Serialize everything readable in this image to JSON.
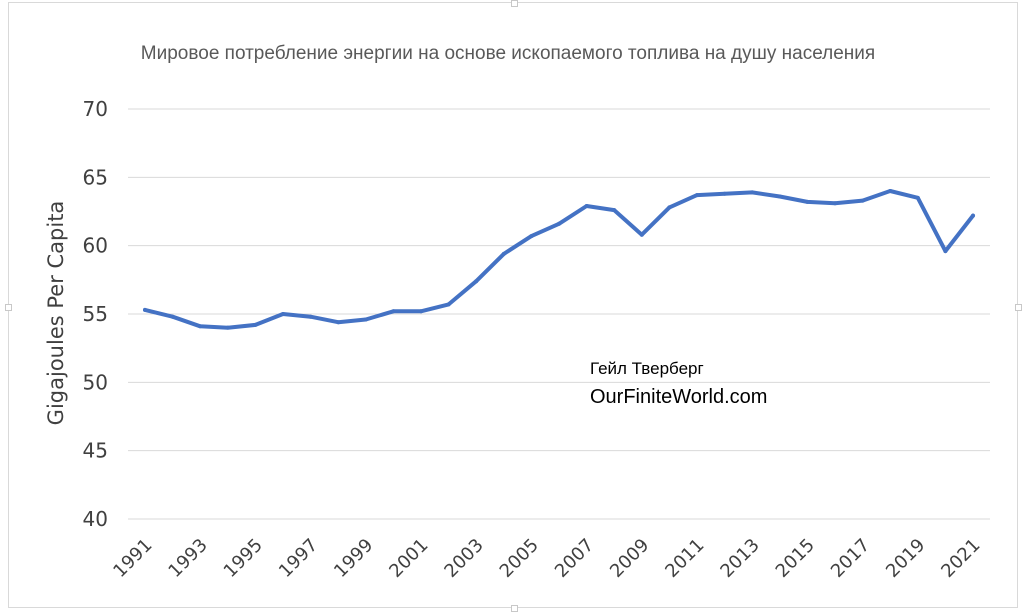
{
  "chart_data": {
    "type": "line",
    "title": "Мировое потребление энергии на основе ископаемого топлива на душу населения",
    "xlabel": "",
    "ylabel": "Gigajoules Per Capita",
    "ylim": [
      40,
      70
    ],
    "yticks": [
      40,
      45,
      50,
      55,
      60,
      65,
      70
    ],
    "xlim": [
      1991,
      2021
    ],
    "xtick_labels": [
      "1991",
      "1993",
      "1995",
      "1997",
      "1999",
      "2001",
      "2003",
      "2005",
      "2007",
      "2009",
      "2011",
      "2013",
      "2015",
      "2017",
      "2019",
      "2021"
    ],
    "grid": "horizontal",
    "legend": "none",
    "series": [
      {
        "color": "#4472c4",
        "x": [
          1991,
          1992,
          1993,
          1994,
          1995,
          1996,
          1997,
          1998,
          1999,
          2000,
          2001,
          2002,
          2003,
          2004,
          2005,
          2006,
          2007,
          2008,
          2009,
          2010,
          2011,
          2012,
          2013,
          2014,
          2015,
          2016,
          2017,
          2018,
          2019,
          2020,
          2021
        ],
        "values": [
          55.3,
          54.8,
          54.1,
          54.0,
          54.2,
          55.0,
          54.8,
          54.4,
          54.6,
          55.2,
          55.2,
          55.7,
          57.4,
          59.4,
          60.7,
          61.6,
          62.9,
          62.6,
          60.8,
          62.8,
          63.7,
          63.8,
          63.9,
          63.6,
          63.2,
          63.1,
          63.3,
          64.0,
          63.5,
          59.6,
          62.2
        ]
      }
    ],
    "annotations": {
      "author": "Гейл Тверберг",
      "site": "OurFiniteWorld.com"
    }
  }
}
